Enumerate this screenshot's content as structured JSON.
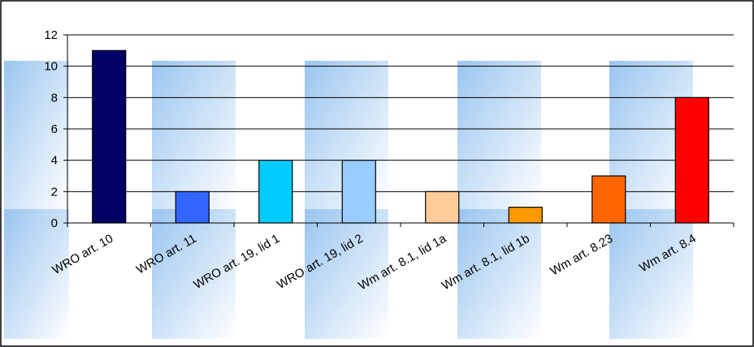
{
  "chart_data": {
    "type": "bar",
    "categories": [
      "WRO art. 10",
      "WRO art. 11",
      "WRO art. 19, lid 1",
      "WRO art. 19, lid 2",
      "Wm art. 8.1, lid 1a",
      "Wm art. 8.1, lid 1b",
      "Wm art. 8.23",
      "Wm art. 8.4"
    ],
    "values": [
      11,
      2,
      4,
      4,
      2,
      1,
      3,
      8
    ],
    "colors": [
      "#000066",
      "#3366ff",
      "#00ccff",
      "#99ccff",
      "#ffcc99",
      "#ff9900",
      "#ff6600",
      "#ff0000"
    ],
    "ylim": [
      0,
      12
    ],
    "yticks": [
      0,
      2,
      4,
      6,
      8,
      10,
      12
    ],
    "grid": true
  }
}
